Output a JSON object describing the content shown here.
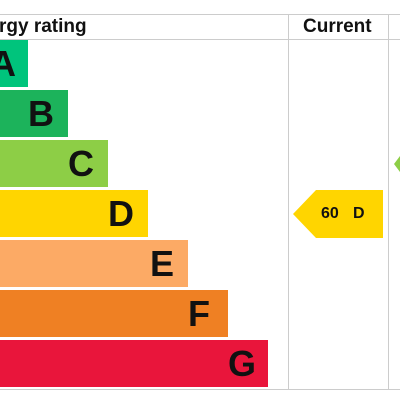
{
  "chart_data": {
    "type": "bar",
    "header": {
      "rating_label": "rgy rating",
      "current_label": "Current"
    },
    "categories": [
      "A",
      "B",
      "C",
      "D",
      "E",
      "F",
      "G"
    ],
    "colors": [
      "#00c47c",
      "#1cb35b",
      "#8dce46",
      "#ffd500",
      "#fcaa65",
      "#ef8023",
      "#e9153b"
    ],
    "current": {
      "value": 60,
      "band": "D",
      "label": "60",
      "band_label": "D",
      "color": "#ffd500"
    },
    "potential": {
      "band": "C",
      "color": "#8dce46"
    }
  }
}
